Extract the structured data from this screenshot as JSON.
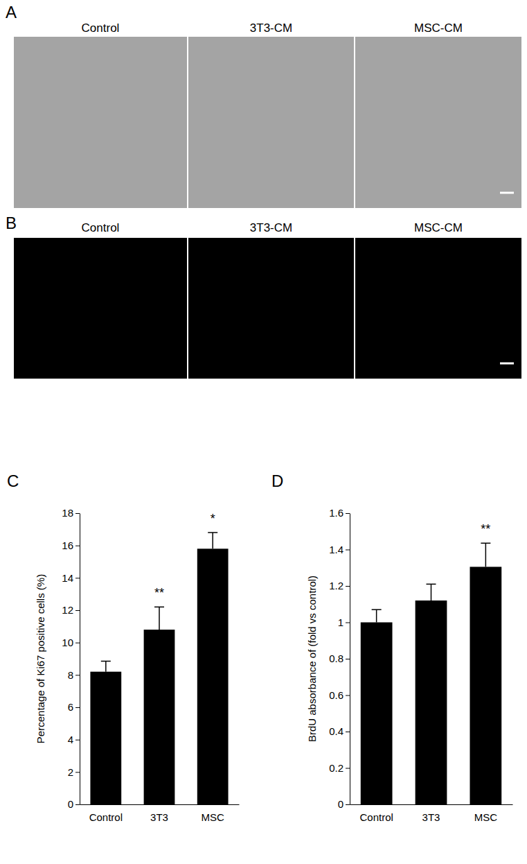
{
  "panels": [
    {
      "label": "A",
      "captions": [
        "Control",
        "3T3-CM",
        "MSC-CM"
      ]
    },
    {
      "label": "B",
      "captions": [
        "Control",
        "3T3-CM",
        "MSC-CM"
      ]
    }
  ],
  "chart_data": [
    {
      "type": "bar",
      "title": "C",
      "y_label": "Percentage of Ki67 positive cells (%)",
      "categories": [
        "Control",
        "3T3",
        "MSC"
      ],
      "values": [
        8.2,
        10.8,
        15.8
      ],
      "errors": [
        0.65,
        1.4,
        1.0
      ],
      "annotations": [
        null,
        "**",
        "*"
      ],
      "color": "#000000",
      "ylim": [
        0,
        18
      ],
      "yticks": [
        0,
        2,
        4,
        6,
        8,
        10,
        12,
        14,
        16,
        18
      ],
      "grid": false
    },
    {
      "type": "bar",
      "title": "D",
      "y_label": "BrdU absorbance of (fold vs control)",
      "categories": [
        "Control",
        "3T3",
        "MSC"
      ],
      "values": [
        1.0,
        1.12,
        1.305
      ],
      "errors": [
        0.07,
        0.09,
        0.13
      ],
      "annotations": [
        null,
        null,
        "**"
      ],
      "color": "#000000",
      "ylim": [
        0,
        1.6
      ],
      "yticks": [
        0,
        0.2,
        0.4,
        0.6,
        0.8,
        1,
        1.2,
        1.4,
        1.6
      ],
      "grid": false
    }
  ]
}
